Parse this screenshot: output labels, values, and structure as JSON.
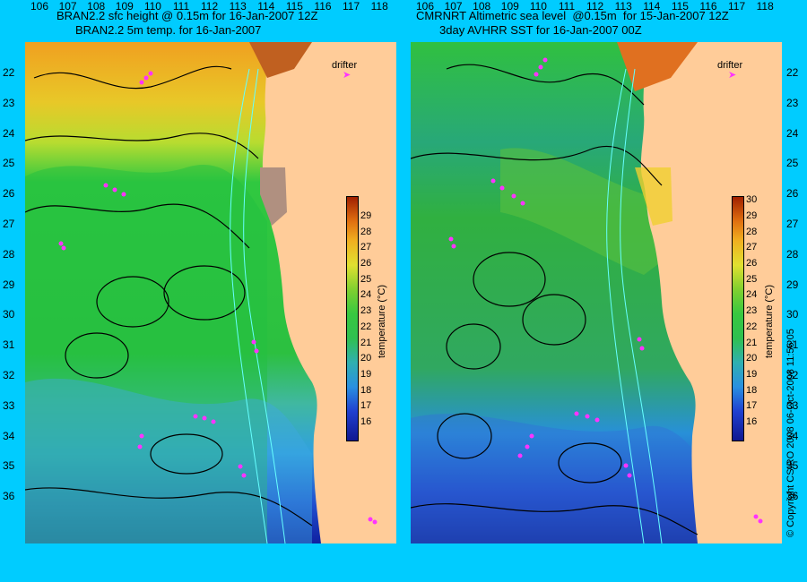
{
  "left_panel": {
    "title_line1": "BRAN2.2 sfc height @ 0.15m for 16-Jan-2007 12Z",
    "title_line2": "BRAN2.2 5m temp. for 16-Jan-2007"
  },
  "right_panel": {
    "title_line1": "CMRNRT Altimetric sea level  @0.15m  for 15-Jan-2007 12Z",
    "title_line2": "3day AVHRR SST for 16-Jan-2007 00Z"
  },
  "drifter_label": "drifter",
  "latitude_labels": [
    "22",
    "23",
    "24",
    "25",
    "26",
    "27",
    "28",
    "29",
    "30",
    "31",
    "32",
    "33",
    "34",
    "35",
    "36"
  ],
  "longitude_labels": [
    "106",
    "107",
    "108",
    "109",
    "110",
    "111",
    "112",
    "113",
    "114",
    "115",
    "116",
    "117",
    "118"
  ],
  "left_colorbar": {
    "ticks": [
      "16",
      "17",
      "18",
      "19",
      "20",
      "21",
      "22",
      "23",
      "24",
      "25",
      "26",
      "27",
      "28",
      "29"
    ],
    "unit": "temperature (°C)"
  },
  "right_colorbar": {
    "ticks": [
      "16",
      "17",
      "18",
      "19",
      "20",
      "21",
      "22",
      "23",
      "24",
      "25",
      "26",
      "27",
      "28",
      "29",
      "30"
    ],
    "unit": "temperature (°C)"
  },
  "copyright": "© Copyright CSIRO 2008   06-Oct-2008 11:56:05",
  "colors": {
    "background": "#00ccff",
    "land": "#ffcc99",
    "drifter": "#ff33ff",
    "isobath": "#66ffff",
    "contour": "#000000"
  }
}
